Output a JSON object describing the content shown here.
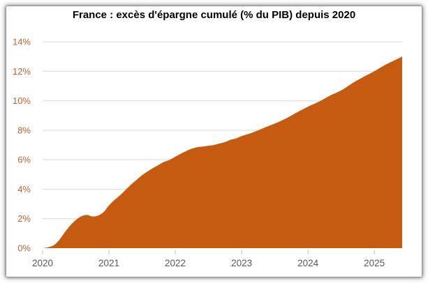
{
  "chart_data": {
    "type": "area",
    "title": "France : excès d'épargne cumulé (% du PIB) depuis 2020",
    "xlabel": "",
    "ylabel": "",
    "xlim": [
      2020,
      2025.42
    ],
    "ylim": [
      0,
      14
    ],
    "x_ticks": [
      "2020",
      "2021",
      "2022",
      "2023",
      "2024",
      "2025"
    ],
    "x_tick_values": [
      2020,
      2021,
      2022,
      2023,
      2024,
      2025
    ],
    "y_ticks": [
      "0%",
      "2%",
      "4%",
      "6%",
      "8%",
      "10%",
      "12%",
      "14%"
    ],
    "y_tick_values": [
      0,
      2,
      4,
      6,
      8,
      10,
      12,
      14
    ],
    "grid": "horizontal-only",
    "legend": "none",
    "series": [
      {
        "name": "Excès d'épargne cumulé (% du PIB)",
        "color": "#C55A11",
        "points": [
          [
            2020.0,
            0.0
          ],
          [
            2020.08,
            0.05
          ],
          [
            2020.17,
            0.2
          ],
          [
            2020.25,
            0.55
          ],
          [
            2020.33,
            1.05
          ],
          [
            2020.42,
            1.55
          ],
          [
            2020.5,
            1.9
          ],
          [
            2020.58,
            2.15
          ],
          [
            2020.67,
            2.25
          ],
          [
            2020.75,
            2.15
          ],
          [
            2020.83,
            2.2
          ],
          [
            2020.92,
            2.45
          ],
          [
            2021.0,
            2.9
          ],
          [
            2021.08,
            3.25
          ],
          [
            2021.17,
            3.6
          ],
          [
            2021.25,
            3.95
          ],
          [
            2021.33,
            4.3
          ],
          [
            2021.42,
            4.65
          ],
          [
            2021.5,
            4.95
          ],
          [
            2021.58,
            5.2
          ],
          [
            2021.67,
            5.45
          ],
          [
            2021.75,
            5.65
          ],
          [
            2021.83,
            5.85
          ],
          [
            2021.92,
            6.0
          ],
          [
            2022.0,
            6.2
          ],
          [
            2022.08,
            6.4
          ],
          [
            2022.17,
            6.6
          ],
          [
            2022.25,
            6.75
          ],
          [
            2022.33,
            6.85
          ],
          [
            2022.42,
            6.9
          ],
          [
            2022.5,
            6.95
          ],
          [
            2022.58,
            7.0
          ],
          [
            2022.67,
            7.1
          ],
          [
            2022.75,
            7.2
          ],
          [
            2022.83,
            7.35
          ],
          [
            2022.92,
            7.45
          ],
          [
            2023.0,
            7.6
          ],
          [
            2023.17,
            7.85
          ],
          [
            2023.33,
            8.15
          ],
          [
            2023.5,
            8.45
          ],
          [
            2023.67,
            8.8
          ],
          [
            2023.83,
            9.2
          ],
          [
            2024.0,
            9.6
          ],
          [
            2024.17,
            9.95
          ],
          [
            2024.33,
            10.35
          ],
          [
            2024.5,
            10.7
          ],
          [
            2024.67,
            11.2
          ],
          [
            2024.83,
            11.6
          ],
          [
            2025.0,
            12.0
          ],
          [
            2025.17,
            12.45
          ],
          [
            2025.33,
            12.8
          ],
          [
            2025.42,
            13.0
          ]
        ]
      }
    ]
  },
  "style": {
    "area_color": "#C55A11",
    "y_tick_color": "#C0622F",
    "x_tick_color": "#595959",
    "gridline_color": "#D9D9D9",
    "tick_mark_color": "#BFBFBF",
    "title_color": "#000000",
    "frame_background": "#FFFFFF"
  }
}
